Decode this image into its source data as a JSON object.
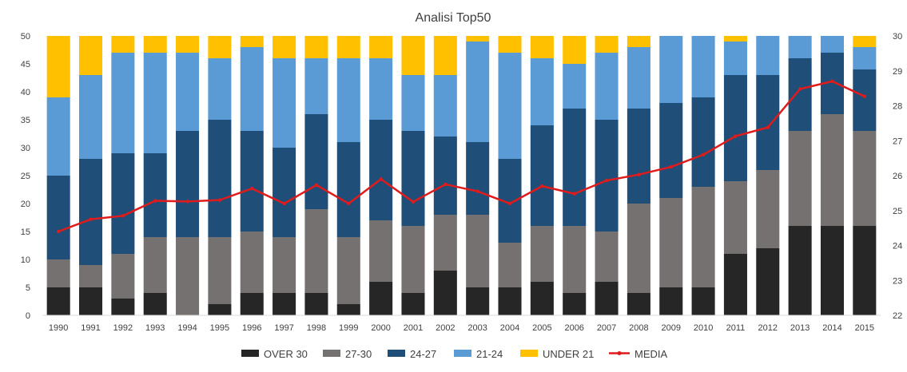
{
  "chart_data": {
    "type": "bar",
    "stacked": true,
    "title": "Analisi Top50",
    "xlabel": "",
    "ylabel": "",
    "categories": [
      "1990",
      "1991",
      "1992",
      "1993",
      "1994",
      "1995",
      "1996",
      "1997",
      "1998",
      "1999",
      "2000",
      "2001",
      "2002",
      "2003",
      "2004",
      "2005",
      "2006",
      "2007",
      "2008",
      "2009",
      "2010",
      "2011",
      "2012",
      "2013",
      "2014",
      "2015"
    ],
    "ylim": [
      0,
      50
    ],
    "y_ticks": [
      0,
      5,
      10,
      15,
      20,
      25,
      30,
      35,
      40,
      45,
      50
    ],
    "y2lim": [
      22,
      30
    ],
    "y2_ticks": [
      22,
      23,
      24,
      25,
      26,
      27,
      28,
      29,
      30
    ],
    "grid": false,
    "legend_position": "bottom",
    "series": [
      {
        "name": "OVER 30",
        "color": "#262626",
        "values": [
          5,
          5,
          3,
          4,
          0,
          2,
          4,
          4,
          4,
          2,
          6,
          4,
          8,
          5,
          5,
          6,
          4,
          6,
          4,
          5,
          5,
          11,
          12,
          16,
          16,
          16
        ]
      },
      {
        "name": "27-30",
        "color": "#767171",
        "values": [
          5,
          4,
          8,
          10,
          14,
          12,
          11,
          10,
          15,
          12,
          11,
          12,
          10,
          13,
          8,
          10,
          12,
          9,
          16,
          16,
          18,
          13,
          14,
          17,
          20,
          17
        ]
      },
      {
        "name": "24-27",
        "color": "#1f4e79",
        "values": [
          15,
          19,
          18,
          15,
          19,
          21,
          18,
          16,
          17,
          17,
          18,
          17,
          14,
          13,
          15,
          18,
          21,
          20,
          17,
          17,
          16,
          19,
          17,
          13,
          11,
          11
        ]
      },
      {
        "name": "21-24",
        "color": "#5b9bd5",
        "values": [
          14,
          15,
          18,
          18,
          14,
          11,
          15,
          16,
          10,
          15,
          11,
          10,
          11,
          18,
          19,
          12,
          8,
          12,
          11,
          12,
          11,
          6,
          7,
          4,
          3,
          4
        ]
      },
      {
        "name": "UNDER 21",
        "color": "#ffc000",
        "values": [
          11,
          7,
          3,
          3,
          3,
          4,
          2,
          4,
          4,
          4,
          4,
          7,
          7,
          1,
          3,
          4,
          5,
          3,
          2,
          0,
          0,
          1,
          0,
          0,
          0,
          2
        ]
      }
    ],
    "line_series": {
      "name": "MEDIA",
      "color": "#e01b1b",
      "axis": "secondary",
      "values": [
        24.4,
        24.75,
        24.85,
        25.28,
        25.26,
        25.3,
        25.63,
        25.2,
        25.73,
        25.2,
        25.9,
        25.25,
        25.75,
        25.55,
        25.2,
        25.7,
        25.48,
        25.86,
        26.03,
        26.25,
        26.6,
        27.13,
        27.38,
        28.48,
        28.7,
        28.27
      ]
    }
  }
}
